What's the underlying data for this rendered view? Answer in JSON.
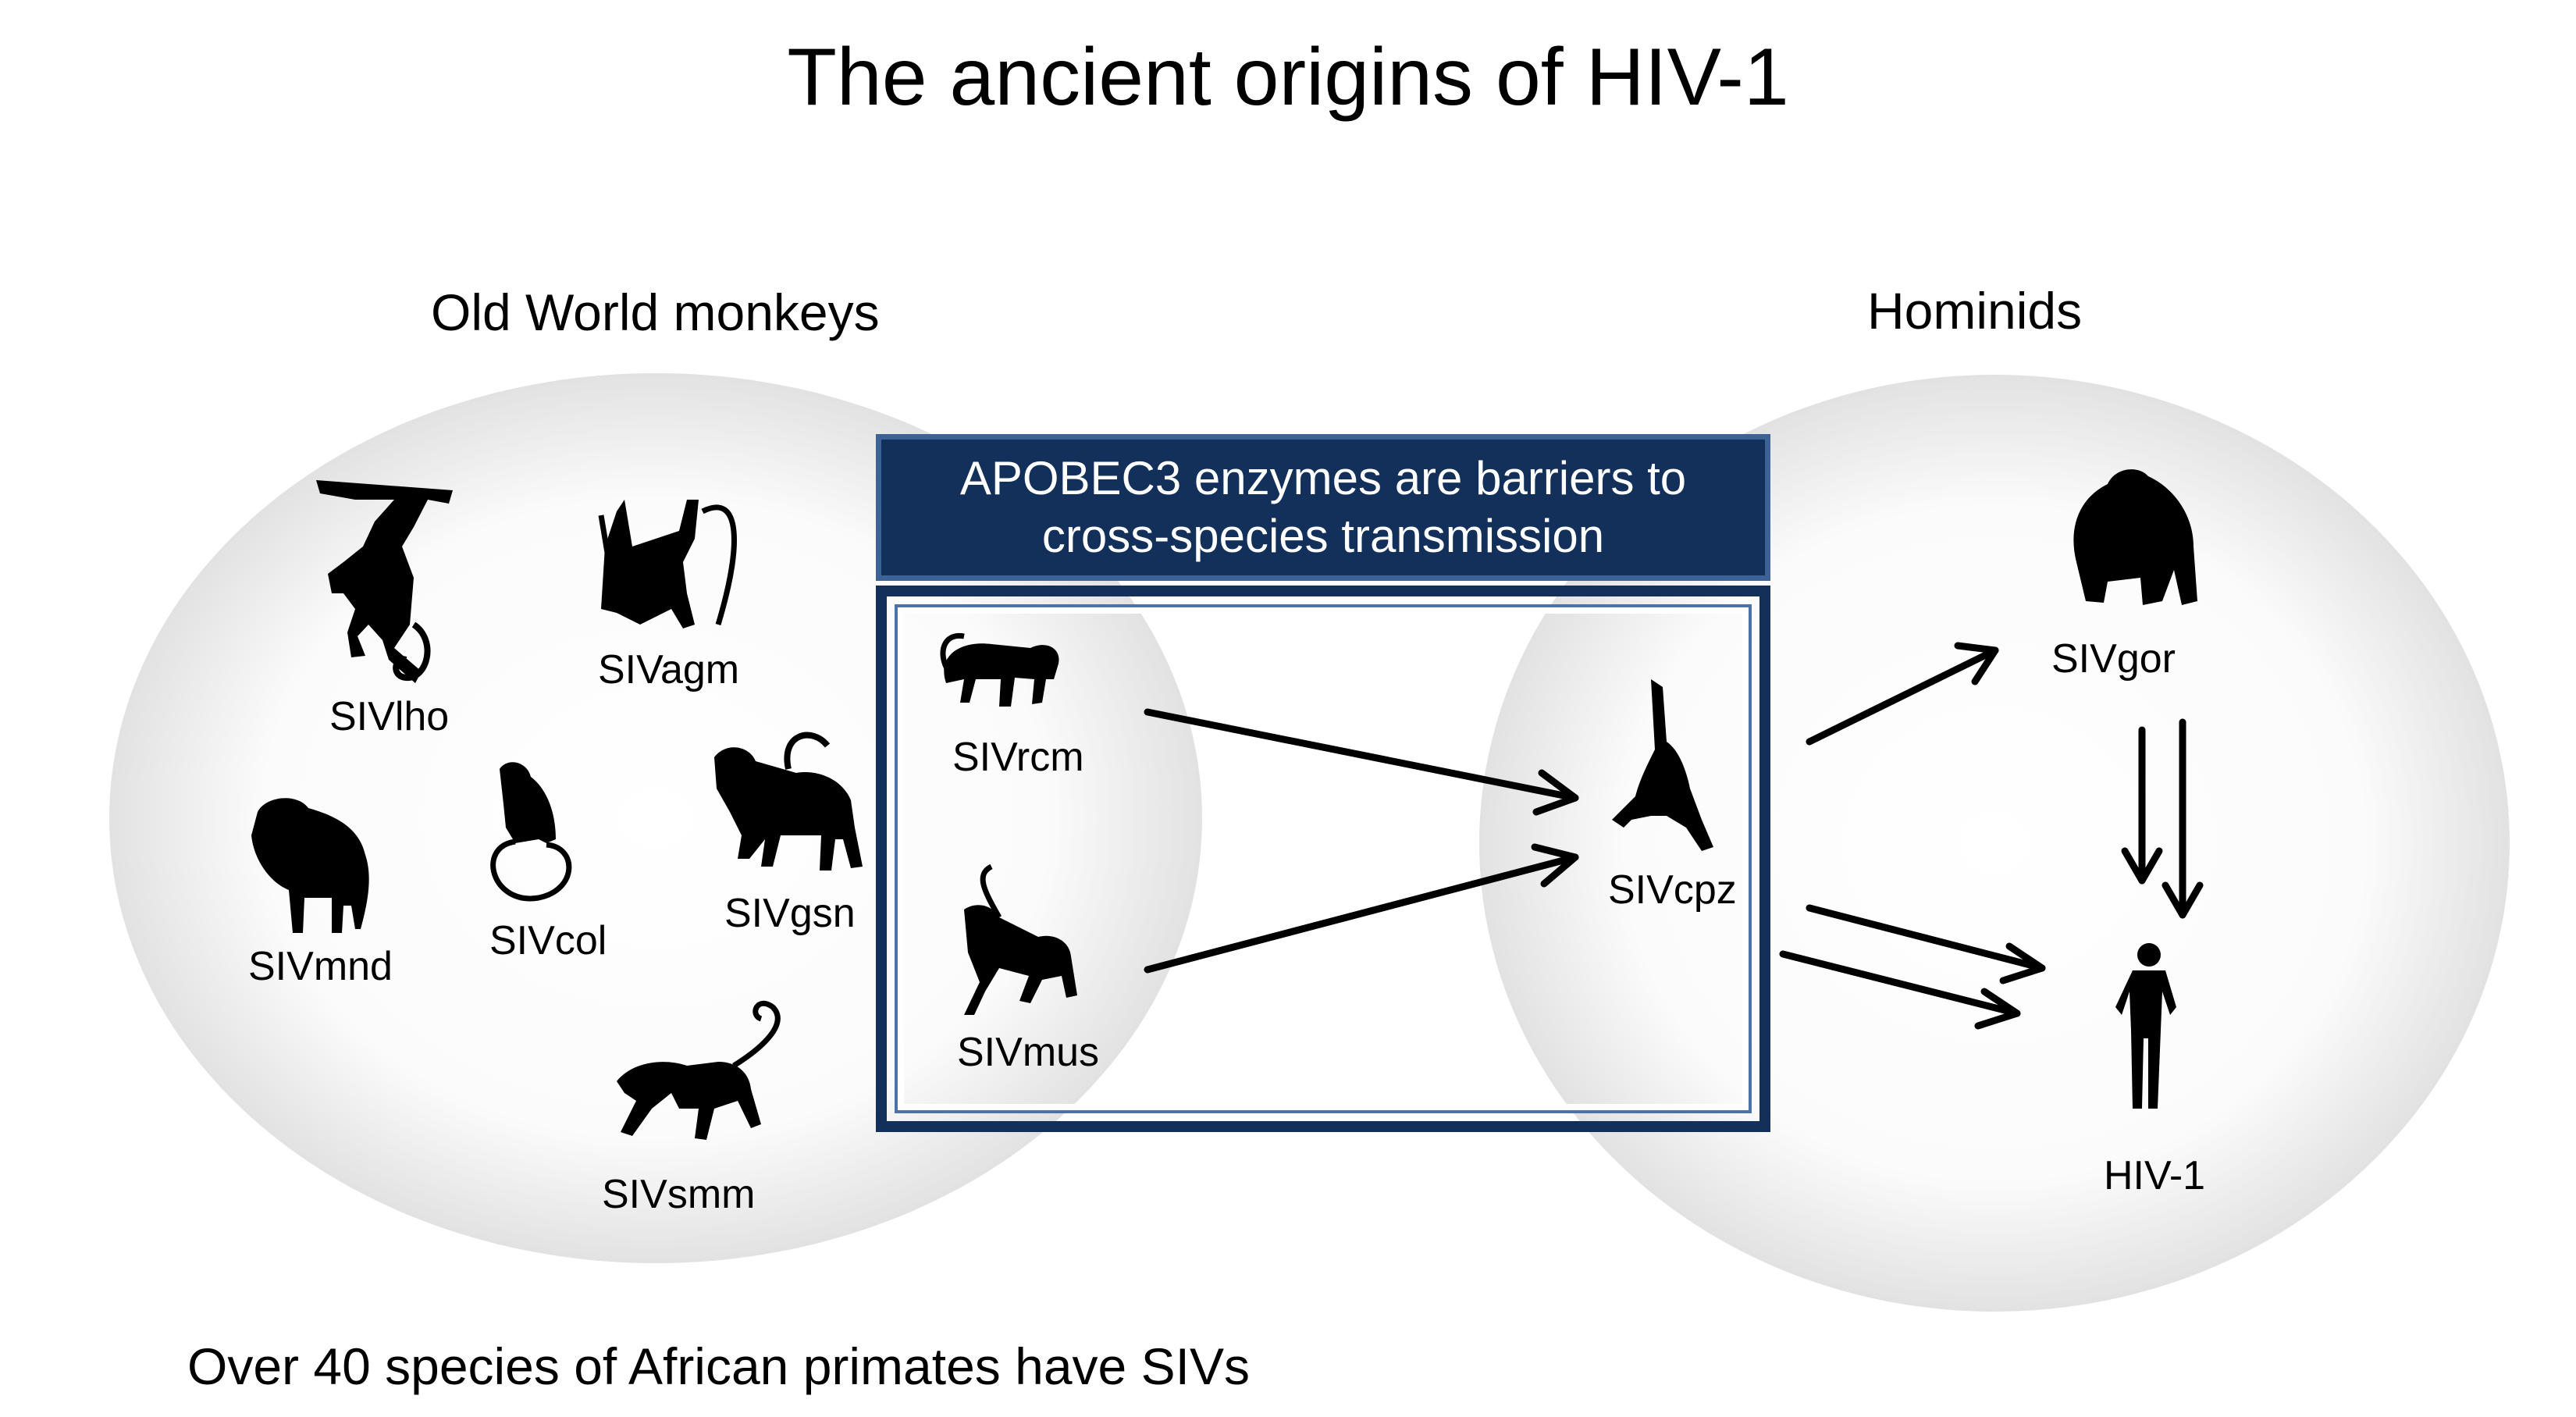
{
  "title": "The ancient origins of HIV-1",
  "groups": {
    "old_world": "Old World monkeys",
    "hominids": "Hominids"
  },
  "banner": {
    "line1": "APOBEC3 enzymes are barriers to",
    "line2": "cross-species transmission"
  },
  "viruses": {
    "lho": "SIVlho",
    "agm": "SIVagm",
    "mnd": "SIVmnd",
    "col": "SIVcol",
    "gsn": "SIVgsn",
    "smm": "SIVsmm",
    "rcm": "SIVrcm",
    "mus": "SIVmus",
    "cpz": "SIVcpz",
    "gor": "SIVgor",
    "hiv": "HIV-1"
  },
  "footer": "Over 40 species of African primates have SIVs",
  "colors": {
    "banner_fill": "#12305a",
    "banner_border": "#3d6396",
    "silhouette": "#000000",
    "circle_shade": "#e6e6e6"
  },
  "icons": {
    "lho": "hanging-monkey-icon",
    "agm": "climbing-monkey-icon",
    "mnd": "mandrill-icon",
    "col": "colobus-icon",
    "gsn": "guenon-icon",
    "smm": "mangabey-icon",
    "rcm": "red-capped-mangabey-icon",
    "mus": "mustached-monkey-icon",
    "cpz": "chimpanzee-icon",
    "gor": "gorilla-icon",
    "hiv": "human-icon"
  }
}
